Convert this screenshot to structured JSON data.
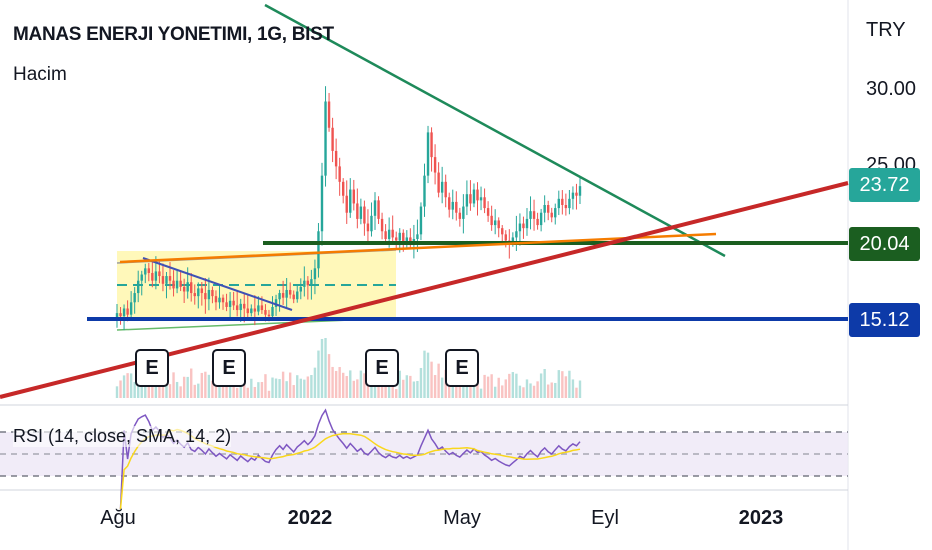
{
  "header": {
    "title": "MANAS ENERJI YONETIMI, 1G, BIST",
    "volume_label": "Hacim",
    "rsi_label": "RSI (14, close, SMA, 14, 2)"
  },
  "price_axis": {
    "currency": "TRY",
    "ticks": [
      "30.00",
      "25.00"
    ]
  },
  "price_tags": [
    {
      "label": "23.72",
      "color": "#26a69a"
    },
    {
      "label": "20.04",
      "color": "#1b5e20"
    },
    {
      "label": "15.12",
      "color": "#0d3aa8"
    }
  ],
  "time_axis": {
    "ticks": [
      {
        "label": "Ağu",
        "bold": false
      },
      {
        "label": "2022",
        "bold": true
      },
      {
        "label": "May",
        "bold": false
      },
      {
        "label": "Eyl",
        "bold": false
      },
      {
        "label": "2023",
        "bold": true
      }
    ]
  },
  "earnings_markers": [
    "E",
    "E",
    "E",
    "E"
  ],
  "colors": {
    "up": "#26a69a",
    "down": "#ef5350",
    "rsi_line": "#7e57c2",
    "rsi_ma": "#f9d71c",
    "support_trendline": "#c62828",
    "resistance_trendline": "#1e8a5a",
    "horizontal_support": "#1b5e20",
    "horizontal_low": "#0d3aa8",
    "channel_line": "#f57c00",
    "range_box": "#fff59d"
  },
  "chart_data": {
    "type": "candlestick",
    "series": [
      {
        "name": "MANAS ENERJI YONETIMI"
      }
    ],
    "x_range": [
      "Haz 2021",
      "Oca 2023"
    ],
    "y_range": [
      10,
      33
    ],
    "closes": [
      15.5,
      15.3,
      15.8,
      15.4,
      16.2,
      16.8,
      17.6,
      18.0,
      18.4,
      18.1,
      17.6,
      18.2,
      17.9,
      17.4,
      17.9,
      17.6,
      17.1,
      17.6,
      17.2,
      16.9,
      17.5,
      16.8,
      16.6,
      17.1,
      16.8,
      16.4,
      17.0,
      16.6,
      16.2,
      16.5,
      16.2,
      15.9,
      16.3,
      16.0,
      15.7,
      16.1,
      15.8,
      15.5,
      15.8,
      15.6,
      16.0,
      15.7,
      15.4,
      15.3,
      15.9,
      16.4,
      16.8,
      16.5,
      17.0,
      16.7,
      16.4,
      16.9,
      17.2,
      17.6,
      17.3,
      17.7,
      18.4,
      20.8,
      24.4,
      29.2,
      27.5,
      26.0,
      25.0,
      24.0,
      23.1,
      22.0,
      23.5,
      22.6,
      21.6,
      22.4,
      21.3,
      20.8,
      21.8,
      22.8,
      21.6,
      20.8,
      20.3,
      20.9,
      20.4,
      20.2,
      20.7,
      20.1,
      20.4,
      20.0,
      20.3,
      20.6,
      22.4,
      24.4,
      27.2,
      25.6,
      24.6,
      23.3,
      24.0,
      23.0,
      22.2,
      22.7,
      22.0,
      21.6,
      22.4,
      23.2,
      22.6,
      23.5,
      22.8,
      23.0,
      22.3,
      21.8,
      21.2,
      21.5,
      21.0,
      20.6,
      20.2,
      20.0,
      20.4,
      20.8,
      21.3,
      21.0,
      21.6,
      22.1,
      21.6,
      21.2,
      22.0,
      22.5,
      22.0,
      21.7,
      22.3,
      22.9,
      22.5,
      22.3,
      22.9,
      23.3,
      23.1,
      23.72
    ],
    "horizontal_levels": [
      20.04,
      15.12
    ],
    "rsi": {
      "levels": [
        70,
        50,
        30
      ],
      "period": 14,
      "ma_period": 14
    }
  }
}
